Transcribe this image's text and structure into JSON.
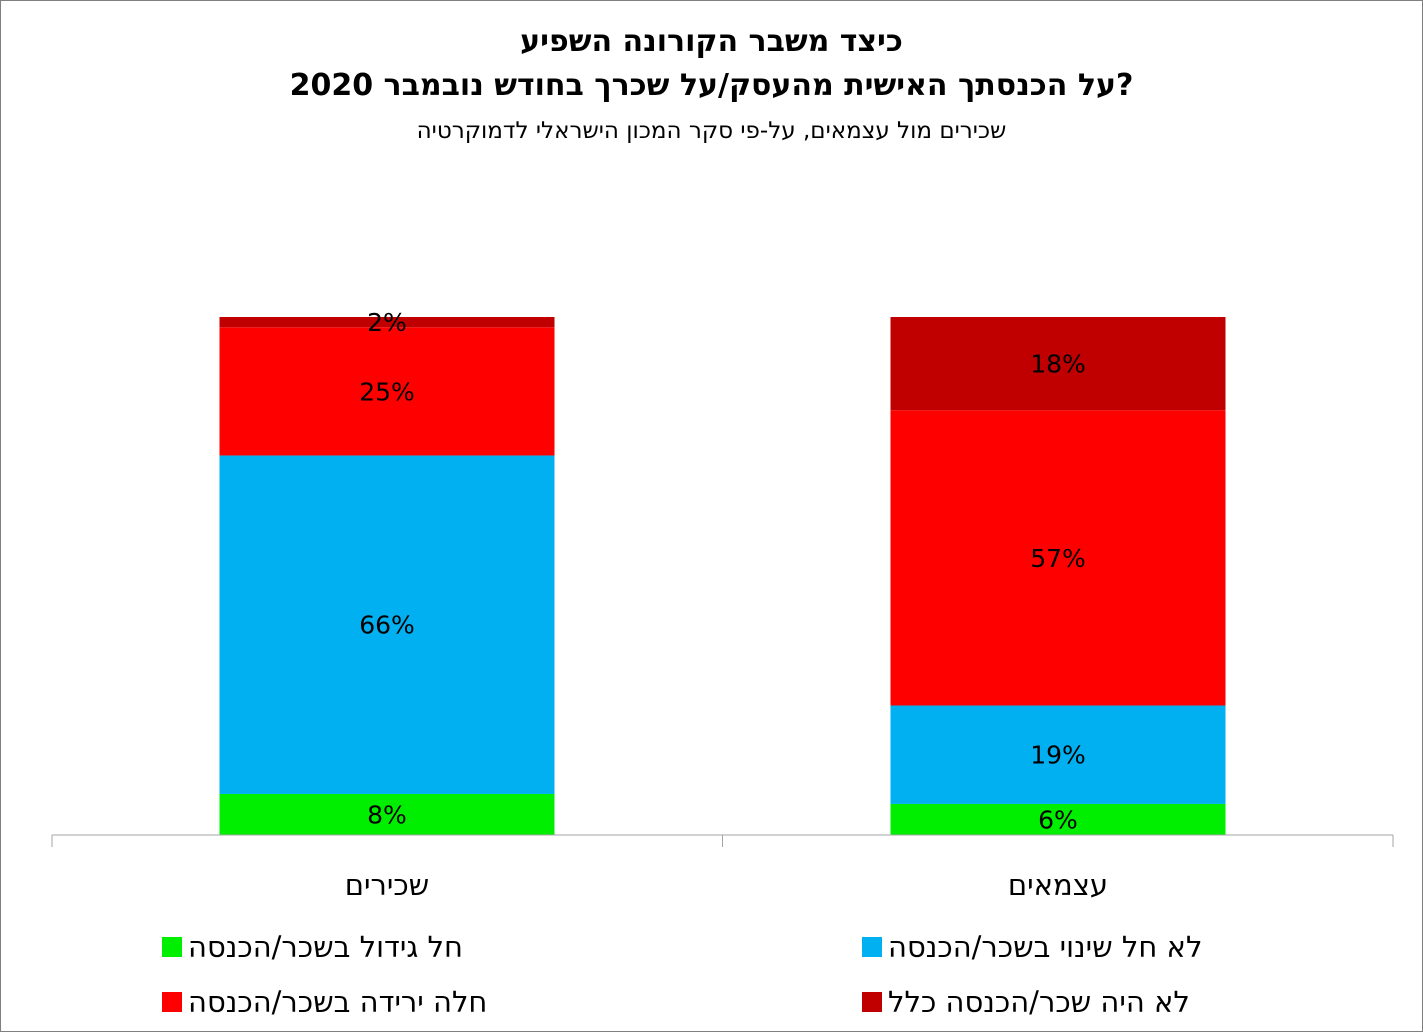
{
  "chart_data": {
    "type": "bar",
    "stacked": true,
    "title": "כיצד משבר הקורונה השפיע",
    "title_line2": "על הכנסתך האישית מהעסק/על שכרך בחודש נובמבר 2020?",
    "subtitle": "שכירים מול עצמאים, על-פי סקר המכון הישראלי לדמוקרטיה",
    "categories": [
      "שכירים",
      "עצמאים"
    ],
    "series": [
      {
        "name": "חל גידול בשכר/הכנסה",
        "color": "#00ee00",
        "values": [
          8,
          6
        ],
        "labels": [
          "8%",
          "6%"
        ]
      },
      {
        "name": "לא חל שינוי בשכר/הכנסה",
        "color": "#00b0f0",
        "values": [
          66,
          19
        ],
        "labels": [
          "66%",
          "19%"
        ]
      },
      {
        "name": "חלה ירידה בשכר/הכנסה",
        "color": "#ff0000",
        "values": [
          25,
          57
        ],
        "labels": [
          "25%",
          "57%"
        ]
      },
      {
        "name": "לא היה שכר/הכנסה כלל",
        "color": "#c00000",
        "values": [
          2,
          18
        ],
        "labels": [
          "2%",
          "18%"
        ]
      }
    ],
    "ylim": [
      0,
      100
    ],
    "grid": false,
    "legend": "bottom"
  }
}
